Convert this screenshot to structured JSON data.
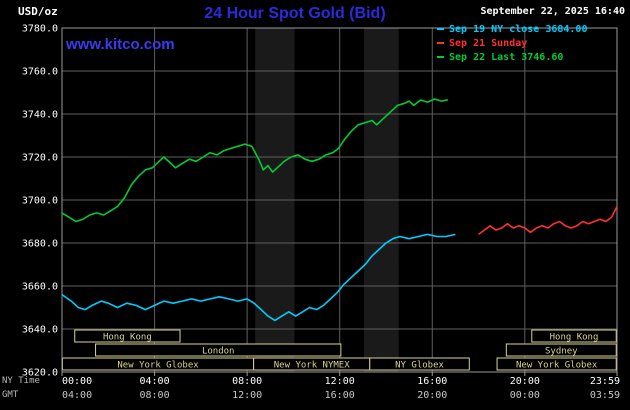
{
  "header": {
    "units_label": "USD/oz",
    "title": "24 Hour Spot Gold (Bid)",
    "datetime": "September 22, 2025 16:40",
    "watermark": "www.kitco.com"
  },
  "colors": {
    "title": "#2b2bdb",
    "watermark": "#3b3bef",
    "session_box": "#d9d38f",
    "grid": "#5f5f5f",
    "border": "#9a9a9a",
    "y_tick_text": "#ffffff",
    "ny_tick_text": "#ffffff",
    "gmt_tick_text": "#c8c8c8",
    "shaded_band": "#1a1a1a"
  },
  "legend": [
    {
      "label": "Sep 19 NY close 3684.00",
      "color": "#00ccff"
    },
    {
      "label": "Sep 21 Sunday",
      "color": "#ff3030"
    },
    {
      "label": "Sep 22 Last 3746.60",
      "color": "#00cc33"
    }
  ],
  "axes": {
    "y_ticks": [
      "3780.0",
      "3760.0",
      "3740.0",
      "3720.0",
      "3700.0",
      "3680.0",
      "3660.0",
      "3640.0",
      "3620.0"
    ],
    "x_rows": [
      {
        "label": "NY Time",
        "ticks": [
          "00:00",
          "04:00",
          "08:00",
          "12:00",
          "16:00",
          "20:00",
          "23:59"
        ]
      },
      {
        "label": "GMT",
        "ticks": [
          "04:00",
          "08:00",
          "12:00",
          "16:00",
          "20:00",
          "00:00",
          "03:59"
        ]
      }
    ]
  },
  "sessions": [
    {
      "label": "Hong Kong",
      "row": 0,
      "start": 0.55,
      "end": 5.1
    },
    {
      "label": "Hong Kong",
      "row": 0,
      "start": 20.3,
      "end": 23.95
    },
    {
      "label": "London",
      "row": 1,
      "start": 1.45,
      "end": 12.05
    },
    {
      "label": "Sydney",
      "row": 1,
      "start": 19.2,
      "end": 23.95
    },
    {
      "label": "New York Globex",
      "row": 2,
      "start": 0.02,
      "end": 8.28
    },
    {
      "label": "New York NYMEX",
      "row": 2,
      "start": 8.28,
      "end": 13.3
    },
    {
      "label": "NY Globex",
      "row": 2,
      "start": 13.3,
      "end": 17.6
    },
    {
      "label": "New York Globex",
      "row": 2,
      "start": 18.8,
      "end": 23.95
    }
  ],
  "chart_data": {
    "type": "line",
    "title": "24 Hour Spot Gold (Bid)",
    "xlabel": "NY Time",
    "ylabel": "USD/oz",
    "ylim": [
      3620,
      3780
    ],
    "xlim_hours": [
      0,
      23.983
    ],
    "grid": true,
    "legend_position": "top-right",
    "y_gridlines": [
      3620,
      3640,
      3660,
      3680,
      3700,
      3720,
      3740,
      3760,
      3780
    ],
    "x_gridlines_hours": [
      0,
      4,
      8,
      12,
      16,
      20,
      23.983
    ],
    "shaded_bands_hours": [
      [
        8.35,
        10.05
      ],
      [
        13.05,
        14.55
      ]
    ],
    "series": [
      {
        "name": "Sep 19 NY close 3684.00",
        "color": "#00ccff",
        "points": [
          [
            0,
            3656
          ],
          [
            0.4,
            3653
          ],
          [
            0.7,
            3650
          ],
          [
            1.0,
            3649
          ],
          [
            1.3,
            3651
          ],
          [
            1.7,
            3653
          ],
          [
            2.0,
            3652
          ],
          [
            2.4,
            3650
          ],
          [
            2.8,
            3652
          ],
          [
            3.2,
            3651
          ],
          [
            3.6,
            3649
          ],
          [
            4.0,
            3651
          ],
          [
            4.4,
            3653
          ],
          [
            4.8,
            3652
          ],
          [
            5.2,
            3653
          ],
          [
            5.6,
            3654
          ],
          [
            6.0,
            3653
          ],
          [
            6.4,
            3654
          ],
          [
            6.8,
            3655
          ],
          [
            7.2,
            3654
          ],
          [
            7.6,
            3653
          ],
          [
            8.0,
            3654
          ],
          [
            8.3,
            3652
          ],
          [
            8.6,
            3649
          ],
          [
            8.9,
            3646
          ],
          [
            9.2,
            3644
          ],
          [
            9.5,
            3646
          ],
          [
            9.8,
            3648
          ],
          [
            10.1,
            3646
          ],
          [
            10.4,
            3648
          ],
          [
            10.7,
            3650
          ],
          [
            11.0,
            3649
          ],
          [
            11.3,
            3651
          ],
          [
            11.6,
            3654
          ],
          [
            11.9,
            3657
          ],
          [
            12.2,
            3661
          ],
          [
            12.5,
            3664
          ],
          [
            12.8,
            3667
          ],
          [
            13.1,
            3670
          ],
          [
            13.4,
            3674
          ],
          [
            13.7,
            3677
          ],
          [
            14.0,
            3680
          ],
          [
            14.3,
            3682
          ],
          [
            14.6,
            3683
          ],
          [
            15.0,
            3682
          ],
          [
            15.4,
            3683
          ],
          [
            15.8,
            3684
          ],
          [
            16.2,
            3683
          ],
          [
            16.6,
            3683
          ],
          [
            17.0,
            3684
          ]
        ]
      },
      {
        "name": "Sep 21 Sunday",
        "color": "#ff3030",
        "points": [
          [
            18.0,
            3684
          ],
          [
            18.25,
            3686
          ],
          [
            18.5,
            3688
          ],
          [
            18.75,
            3686
          ],
          [
            19.0,
            3687
          ],
          [
            19.25,
            3689
          ],
          [
            19.5,
            3687
          ],
          [
            19.75,
            3688
          ],
          [
            20.0,
            3687
          ],
          [
            20.25,
            3685
          ],
          [
            20.5,
            3687
          ],
          [
            20.75,
            3688
          ],
          [
            21.0,
            3687
          ],
          [
            21.25,
            3689
          ],
          [
            21.5,
            3690
          ],
          [
            21.75,
            3688
          ],
          [
            22.0,
            3687
          ],
          [
            22.25,
            3688
          ],
          [
            22.5,
            3690
          ],
          [
            22.75,
            3689
          ],
          [
            23.0,
            3690
          ],
          [
            23.25,
            3691
          ],
          [
            23.5,
            3690
          ],
          [
            23.75,
            3692
          ],
          [
            23.983,
            3697
          ]
        ]
      },
      {
        "name": "Sep 22 Last 3746.60",
        "color": "#00cc33",
        "points": [
          [
            0,
            3694
          ],
          [
            0.3,
            3692
          ],
          [
            0.6,
            3690
          ],
          [
            0.9,
            3691
          ],
          [
            1.2,
            3693
          ],
          [
            1.5,
            3694
          ],
          [
            1.8,
            3693
          ],
          [
            2.1,
            3695
          ],
          [
            2.4,
            3697
          ],
          [
            2.7,
            3701
          ],
          [
            3.0,
            3707
          ],
          [
            3.3,
            3711
          ],
          [
            3.6,
            3714
          ],
          [
            3.9,
            3715
          ],
          [
            4.1,
            3717
          ],
          [
            4.4,
            3720
          ],
          [
            4.7,
            3717
          ],
          [
            4.9,
            3715
          ],
          [
            5.2,
            3717
          ],
          [
            5.5,
            3719
          ],
          [
            5.8,
            3718
          ],
          [
            6.1,
            3720
          ],
          [
            6.4,
            3722
          ],
          [
            6.7,
            3721
          ],
          [
            7.0,
            3723
          ],
          [
            7.3,
            3724
          ],
          [
            7.6,
            3725
          ],
          [
            7.9,
            3726
          ],
          [
            8.2,
            3725
          ],
          [
            8.5,
            3719
          ],
          [
            8.7,
            3714
          ],
          [
            8.9,
            3716
          ],
          [
            9.1,
            3713
          ],
          [
            9.3,
            3715
          ],
          [
            9.6,
            3718
          ],
          [
            9.9,
            3720
          ],
          [
            10.2,
            3721
          ],
          [
            10.5,
            3719
          ],
          [
            10.8,
            3718
          ],
          [
            11.1,
            3719
          ],
          [
            11.4,
            3721
          ],
          [
            11.7,
            3722
          ],
          [
            11.95,
            3724
          ],
          [
            12.2,
            3728
          ],
          [
            12.5,
            3732
          ],
          [
            12.8,
            3735
          ],
          [
            13.1,
            3736
          ],
          [
            13.4,
            3737
          ],
          [
            13.6,
            3735
          ],
          [
            13.9,
            3738
          ],
          [
            14.2,
            3741
          ],
          [
            14.5,
            3744
          ],
          [
            14.8,
            3745
          ],
          [
            15.0,
            3746
          ],
          [
            15.2,
            3744
          ],
          [
            15.5,
            3746.5
          ],
          [
            15.8,
            3745.5
          ],
          [
            16.1,
            3747
          ],
          [
            16.4,
            3746
          ],
          [
            16.67,
            3746.6
          ]
        ]
      }
    ]
  }
}
